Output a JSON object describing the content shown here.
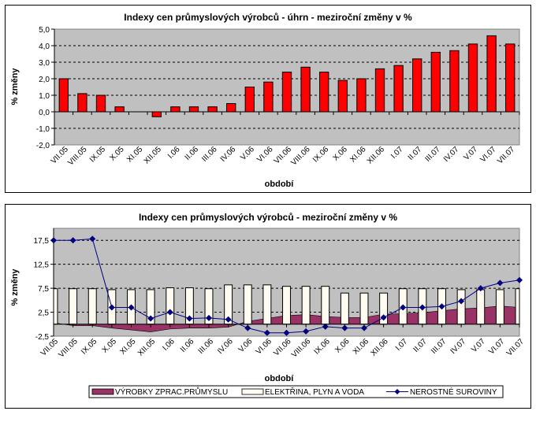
{
  "chart_data": [
    {
      "type": "bar",
      "title": "Indexy cen průmyslových výrobců - úhrn - meziroční změny v %",
      "xlabel": "období",
      "ylabel": "% změny",
      "ylim": [
        -2.0,
        5.0
      ],
      "yticks": [
        "5,0",
        "4,0",
        "3,0",
        "2,0",
        "1,0",
        "0,0",
        "-1,0",
        "-2,0"
      ],
      "ytick_values": [
        5,
        4,
        3,
        2,
        1,
        0,
        -1,
        -2
      ],
      "grid": true,
      "categories": [
        "VII.05",
        "VIII.05",
        "IX.05",
        "X.05",
        "XI.05",
        "XII.05",
        "I.06",
        "II.06",
        "III.06",
        "IV.06",
        "V.06",
        "VI.06",
        "VII.06",
        "VIII.06",
        "IX.06",
        "X.06",
        "XI.06",
        "XII.06",
        "I.07",
        "II.07",
        "III.07",
        "IV.07",
        "V.07",
        "VI.07",
        "VII.07"
      ],
      "values": [
        2.0,
        1.1,
        1.0,
        0.3,
        0.0,
        -0.3,
        0.3,
        0.3,
        0.3,
        0.5,
        1.5,
        1.8,
        2.4,
        2.7,
        2.4,
        1.9,
        2.0,
        2.6,
        2.8,
        3.2,
        3.6,
        3.7,
        4.1,
        4.6,
        4.1
      ],
      "colors": {
        "bar": "#ff0000",
        "plot_bg": "#c0c0c0"
      }
    },
    {
      "type": "bar",
      "title": "Indexy cen průmyslových výrobců - meziroční změny v %",
      "xlabel": "období",
      "ylabel": "% změny",
      "ylim": [
        -2.5,
        20.0
      ],
      "yticks": [
        "17,5",
        "12,5",
        "7,5",
        "2,5",
        "-2,5"
      ],
      "ytick_values": [
        17.5,
        12.5,
        7.5,
        2.5,
        -2.5
      ],
      "grid": true,
      "legend_position": "bottom",
      "categories": [
        "VII.05",
        "VIII.05",
        "IX.05",
        "X.05",
        "XI.05",
        "XII.05",
        "I.06",
        "II.06",
        "III.06",
        "IV.06",
        "V.06",
        "VI.06",
        "VII.06",
        "VIII.06",
        "IX.06",
        "X.06",
        "XI.06",
        "XII.06",
        "I.07",
        "II.07",
        "III.07",
        "IV.07",
        "V.07",
        "VI.07",
        "VII.07"
      ],
      "series": [
        {
          "name": "VÝROBKY ZPRAC.PRŮMYSLU",
          "kind": "area",
          "color": "#993366",
          "values": [
            0.3,
            -0.3,
            -0.3,
            -0.8,
            -1.2,
            -1.6,
            -1.0,
            -0.8,
            -0.8,
            -0.6,
            0.6,
            1.2,
            1.8,
            2.0,
            1.6,
            1.4,
            1.4,
            2.1,
            2.2,
            2.4,
            2.8,
            3.2,
            3.4,
            3.8,
            3.5
          ]
        },
        {
          "name": "ELEKTŘINA, PLYN A  VODA",
          "kind": "bar",
          "color": "#fffbf0",
          "values": [
            7.4,
            7.4,
            7.4,
            7.2,
            7.2,
            7.2,
            7.6,
            7.6,
            7.4,
            8.2,
            8.2,
            8.2,
            7.9,
            7.9,
            7.9,
            6.5,
            6.5,
            6.5,
            7.4,
            7.4,
            7.4,
            7.2,
            7.2,
            7.2,
            7.4
          ]
        },
        {
          "name": "NEROSTNÉ  SUROVINY",
          "kind": "line",
          "color": "#000080",
          "values": [
            17.5,
            17.5,
            17.8,
            3.5,
            3.5,
            1.2,
            2.5,
            1.2,
            1.3,
            1.0,
            -0.8,
            -1.8,
            -1.8,
            -1.5,
            -0.5,
            -0.8,
            -0.8,
            1.4,
            3.5,
            3.5,
            3.7,
            4.8,
            7.5,
            8.6,
            9.2
          ]
        }
      ],
      "colors": {
        "plot_bg": "#c0c0c0"
      }
    }
  ]
}
